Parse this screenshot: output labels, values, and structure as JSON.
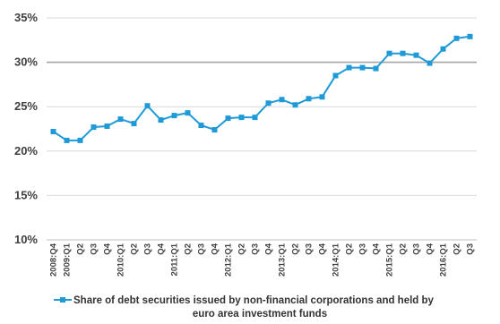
{
  "chart_data": {
    "type": "line",
    "categories": [
      "2008:Q4",
      "2009:Q1",
      "Q2",
      "Q3",
      "Q4",
      "2010:Q1",
      "Q2",
      "Q3",
      "Q4",
      "2011:Q1",
      "Q2",
      "Q3",
      "Q4",
      "2012:Q1",
      "Q2",
      "Q3",
      "Q4",
      "2013:Q1",
      "Q2",
      "Q3",
      "Q4",
      "2014:Q1",
      "Q2",
      "Q3",
      "Q4",
      "2015:Q1",
      "Q2",
      "Q3",
      "Q4",
      "2016:Q1",
      "Q2",
      "Q3"
    ],
    "series": [
      {
        "name": "Share of debt securities issued by non-financial corporations and held by euro area investment funds",
        "values": [
          22.2,
          21.2,
          21.2,
          22.7,
          22.8,
          23.6,
          23.1,
          25.1,
          23.5,
          24.0,
          24.3,
          22.9,
          22.4,
          23.7,
          23.8,
          23.8,
          25.4,
          25.8,
          25.2,
          25.9,
          26.1,
          28.5,
          29.4,
          29.4,
          29.3,
          31.0,
          31.0,
          30.8,
          29.9,
          31.5,
          32.7,
          32.9
        ]
      }
    ],
    "ylim": [
      10,
      35
    ],
    "yticks": [
      10,
      15,
      20,
      25,
      30,
      35
    ],
    "ytick_labels": [
      "10%",
      "15%",
      "20%",
      "25%",
      "30%",
      "35%"
    ],
    "grid": "horizontal",
    "legend_position": "bottom",
    "legend_lines": [
      "Share of debt securities issued by non-financial corporations and held by",
      "euro area investment funds"
    ],
    "colors": {
      "series": "#1f9ad6",
      "grid": "#d9d9d9",
      "axis": "#bfbfbf"
    }
  }
}
